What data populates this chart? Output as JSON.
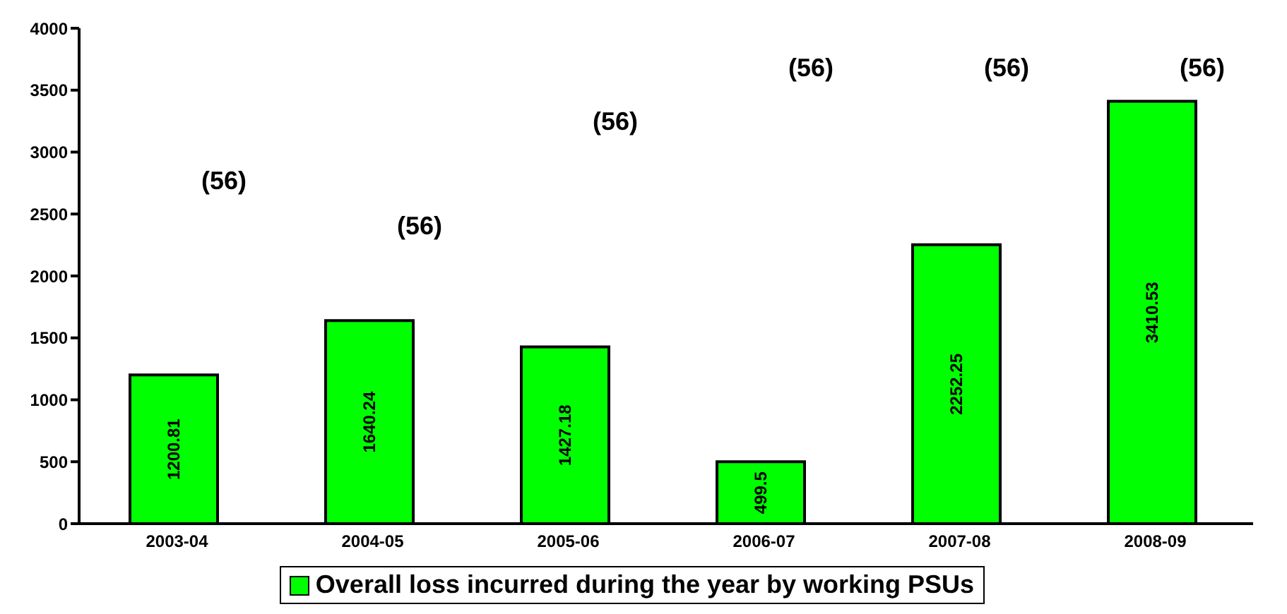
{
  "chart_data": {
    "type": "bar",
    "categories": [
      "2003-04",
      "2004-05",
      "2005-06",
      "2006-07",
      "2007-08",
      "2008-09"
    ],
    "series": [
      {
        "name": "Overall loss incurred during the year by working PSUs",
        "color": "#00ff00",
        "values": [
          1200.81,
          1640.24,
          1427.18,
          499.5,
          2252.25,
          3410.53
        ]
      }
    ],
    "ylim": [
      0,
      4000
    ],
    "yticks": [
      0,
      500,
      1000,
      1500,
      2000,
      2500,
      3000,
      3500,
      4000
    ],
    "grid": false,
    "legend": "bottom",
    "data_labels": true,
    "annotations": [
      "(56)",
      "(56)",
      "(56)",
      "(56)",
      "(56)",
      "(56)"
    ]
  }
}
